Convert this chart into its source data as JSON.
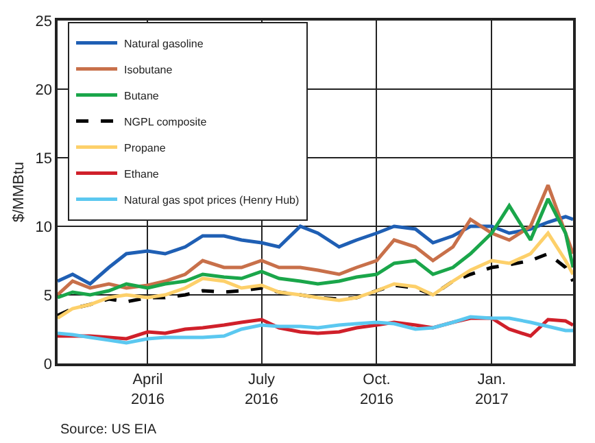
{
  "chart_data": {
    "type": "line",
    "ylabel": "$/MMBtu",
    "x": [
      "2016-01-20",
      "2016-02-01",
      "2016-02-15",
      "2016-03-01",
      "2016-03-15",
      "2016-04-01",
      "2016-04-15",
      "2016-05-01",
      "2016-05-15",
      "2016-06-01",
      "2016-06-15",
      "2016-07-01",
      "2016-07-15",
      "2016-08-01",
      "2016-08-15",
      "2016-09-01",
      "2016-09-15",
      "2016-10-01",
      "2016-10-15",
      "2016-11-01",
      "2016-11-15",
      "2016-12-01",
      "2016-12-15",
      "2017-01-01",
      "2017-01-15",
      "2017-02-01",
      "2017-02-15",
      "2017-03-01",
      "2017-03-07"
    ],
    "series": [
      {
        "name": "Natural gasoline",
        "color": "#1f5fb4",
        "values": [
          6,
          6.5,
          5.8,
          7,
          8,
          8.2,
          8,
          8.5,
          9.3,
          9.3,
          9,
          8.8,
          8.5,
          10,
          9.5,
          8.5,
          9,
          9.5,
          10,
          9.8,
          8.8,
          9.3,
          10,
          10,
          9.5,
          9.8,
          10.3,
          10.7,
          10.5
        ]
      },
      {
        "name": "Isobutane",
        "color": "#c8704a",
        "values": [
          5,
          6,
          5.5,
          5.8,
          5.5,
          5.7,
          6,
          6.5,
          7.5,
          7,
          7,
          7.5,
          7,
          7,
          6.8,
          6.5,
          7,
          7.5,
          9,
          8.5,
          7.5,
          8.5,
          10.5,
          9.5,
          9,
          10,
          13,
          9.5,
          8
        ]
      },
      {
        "name": "Butane",
        "color": "#1aa64a",
        "values": [
          4.8,
          5.2,
          5,
          5.3,
          5.8,
          5.5,
          5.8,
          6,
          6.5,
          6.3,
          6.2,
          6.7,
          6.2,
          6,
          5.8,
          6,
          6.3,
          6.5,
          7.3,
          7.5,
          6.5,
          7,
          8,
          9.5,
          11.5,
          9,
          12,
          9.5,
          7
        ]
      },
      {
        "name": "NGPL composite",
        "color": "#000000",
        "line_style": "dashed",
        "values": [
          3.5,
          4,
          4.3,
          4.7,
          4.5,
          4.8,
          4.8,
          5,
          5.3,
          5.2,
          5.3,
          5.5,
          5.2,
          5,
          4.8,
          4.7,
          4.8,
          5.3,
          5.7,
          5.5,
          5,
          6,
          6.5,
          7,
          7.2,
          7.5,
          8,
          7,
          6
        ]
      },
      {
        "name": "Propane",
        "color": "#fdd06a",
        "values": [
          3.3,
          4,
          4.3,
          4.8,
          5,
          4.8,
          5,
          5.5,
          6.2,
          6,
          5.5,
          5.7,
          5.2,
          5,
          4.8,
          4.6,
          4.8,
          5.3,
          5.8,
          5.6,
          5,
          6,
          6.8,
          7.5,
          7.3,
          8,
          9.5,
          7.5,
          6.5
        ]
      },
      {
        "name": "Ethane",
        "color": "#d0202a",
        "values": [
          2,
          2,
          2,
          1.9,
          1.8,
          2.3,
          2.2,
          2.5,
          2.6,
          2.8,
          3,
          3.2,
          2.6,
          2.3,
          2.2,
          2.3,
          2.6,
          2.8,
          3,
          2.8,
          2.6,
          3,
          3.3,
          3.3,
          2.5,
          2,
          3.2,
          3.1,
          2.8
        ]
      },
      {
        "name": "Natural gas spot prices (Henry Hub)",
        "color": "#5bc8f0",
        "values": [
          2.2,
          2.1,
          1.9,
          1.7,
          1.5,
          1.8,
          1.9,
          1.9,
          1.9,
          2,
          2.5,
          2.8,
          2.7,
          2.7,
          2.6,
          2.8,
          2.9,
          3,
          2.9,
          2.5,
          2.6,
          3,
          3.4,
          3.3,
          3.3,
          3,
          2.7,
          2.4,
          2.4
        ]
      }
    ],
    "xlim": [
      "2016-01-20",
      "2017-03-07"
    ],
    "xticks": [
      {
        "value": "2016-04-01",
        "label": "April 2016"
      },
      {
        "value": "2016-07-01",
        "label": "July 2016"
      },
      {
        "value": "2016-10-01",
        "label": "Oct. 2016"
      },
      {
        "value": "2017-01-01",
        "label": "Jan. 2017"
      }
    ],
    "ylim": [
      0,
      25
    ],
    "yticks": [
      0,
      5,
      10,
      15,
      20,
      25
    ],
    "grid": true,
    "legend": "top left",
    "marker": "none",
    "line_style": "solid",
    "annotations": [
      "Source: US EIA"
    ]
  }
}
